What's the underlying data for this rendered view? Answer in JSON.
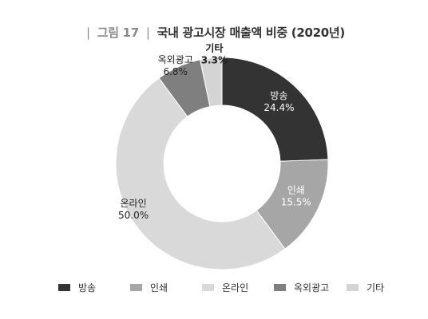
{
  "figure": {
    "label": "그림 17",
    "title": "국내 광고시장 매출액 비중 (2020년)"
  },
  "chart_data": {
    "type": "pie",
    "donut": true,
    "title": "국내 광고시장 매출액 비중 (2020년)",
    "unit": "%",
    "legend_position": "bottom",
    "categories": [
      "방송",
      "인쇄",
      "온라인",
      "옥외광고",
      "기타"
    ],
    "values": [
      24.4,
      15.5,
      50.0,
      6.8,
      3.3
    ],
    "data_labels": [
      "24.4%",
      "15.5%",
      "50.0%",
      "6.8%",
      "3.3%"
    ],
    "colors": [
      "#333333",
      "#a6a6a6",
      "#d9d9d9",
      "#7f7f7f",
      "#d4d4d4"
    ]
  }
}
